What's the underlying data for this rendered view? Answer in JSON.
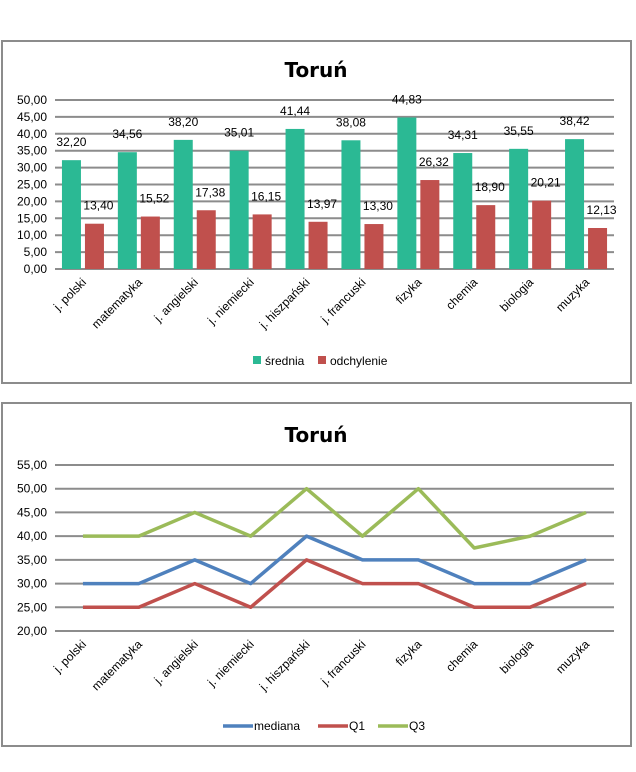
{
  "chart_data": [
    {
      "type": "bar",
      "title": "Toruń",
      "categories": [
        "j. polski",
        "matematyka",
        "j. angielski",
        "j. niemiecki",
        "j. hiszpański",
        "j. francuski",
        "fizyka",
        "chemia",
        "biologia",
        "muzyka"
      ],
      "series": [
        {
          "name": "średnia",
          "color": "#2bb994",
          "values": [
            32.2,
            34.56,
            38.2,
            35.01,
            41.44,
            38.08,
            44.83,
            34.31,
            35.55,
            38.42
          ],
          "labels": [
            "32,20",
            "34,56",
            "38,20",
            "35,01",
            "41,44",
            "38,08",
            "44,83",
            "34,31",
            "35,55",
            "38,42"
          ]
        },
        {
          "name": "odchylenie",
          "color": "#c0504d",
          "values": [
            13.4,
            15.52,
            17.38,
            16.15,
            13.97,
            13.3,
            26.32,
            18.9,
            20.21,
            12.13
          ],
          "labels": [
            "13,40",
            "15,52",
            "17,38",
            "16,15",
            "13,97",
            "13,30",
            "26,32",
            "18,90",
            "20,21",
            "12,13"
          ]
        }
      ],
      "ylim": [
        0,
        50
      ],
      "ytick_step": 5,
      "ytick_labels": [
        "0,00",
        "5,00",
        "10,00",
        "15,00",
        "20,00",
        "25,00",
        "30,00",
        "35,00",
        "40,00",
        "45,00",
        "50,00"
      ],
      "xlabel": "",
      "ylabel": "",
      "grid": true,
      "legend": "bottom"
    },
    {
      "type": "line",
      "title": "Toruń",
      "categories": [
        "j. polski",
        "matematyka",
        "j. angielski",
        "j. niemiecki",
        "j. hiszpański",
        "j. francuski",
        "fizyka",
        "chemia",
        "biologia",
        "muzyka"
      ],
      "series": [
        {
          "name": "mediana",
          "color": "#4f81bd",
          "values": [
            30,
            30,
            35,
            30,
            40,
            35,
            35,
            30,
            30,
            35
          ]
        },
        {
          "name": "Q1",
          "color": "#c0504d",
          "values": [
            25,
            25,
            30,
            25,
            35,
            30,
            30,
            25,
            25,
            30
          ]
        },
        {
          "name": "Q3",
          "color": "#9bbb59",
          "values": [
            40,
            40,
            45,
            40,
            50,
            40,
            50,
            37.5,
            40,
            45
          ]
        }
      ],
      "ylim": [
        20,
        55
      ],
      "ytick_step": 5,
      "ytick_labels": [
        "20,00",
        "25,00",
        "30,00",
        "35,00",
        "40,00",
        "45,00",
        "50,00",
        "55,00"
      ],
      "xlabel": "",
      "ylabel": "",
      "grid": true,
      "legend": "bottom"
    }
  ]
}
